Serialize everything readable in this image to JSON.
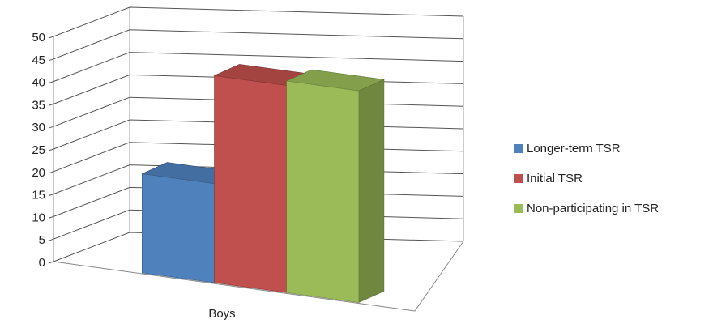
{
  "chart_data": {
    "type": "bar",
    "categories": [
      "Boys"
    ],
    "series": [
      {
        "name": "Longer-term TSR",
        "values": [
          22
        ],
        "color": "#4f81bd"
      },
      {
        "name": "Initial TSR",
        "values": [
          46
        ],
        "color": "#c0504d"
      },
      {
        "name": "Non-participating in TSR",
        "values": [
          47
        ],
        "color": "#9bbb59"
      }
    ],
    "ylim": [
      0,
      50
    ],
    "yticks": [
      0,
      5,
      10,
      15,
      20,
      25,
      30,
      35,
      40,
      45,
      50
    ],
    "title": "",
    "xlabel": "",
    "ylabel": "",
    "grid": true,
    "three_d": true,
    "legend_position": "right"
  }
}
